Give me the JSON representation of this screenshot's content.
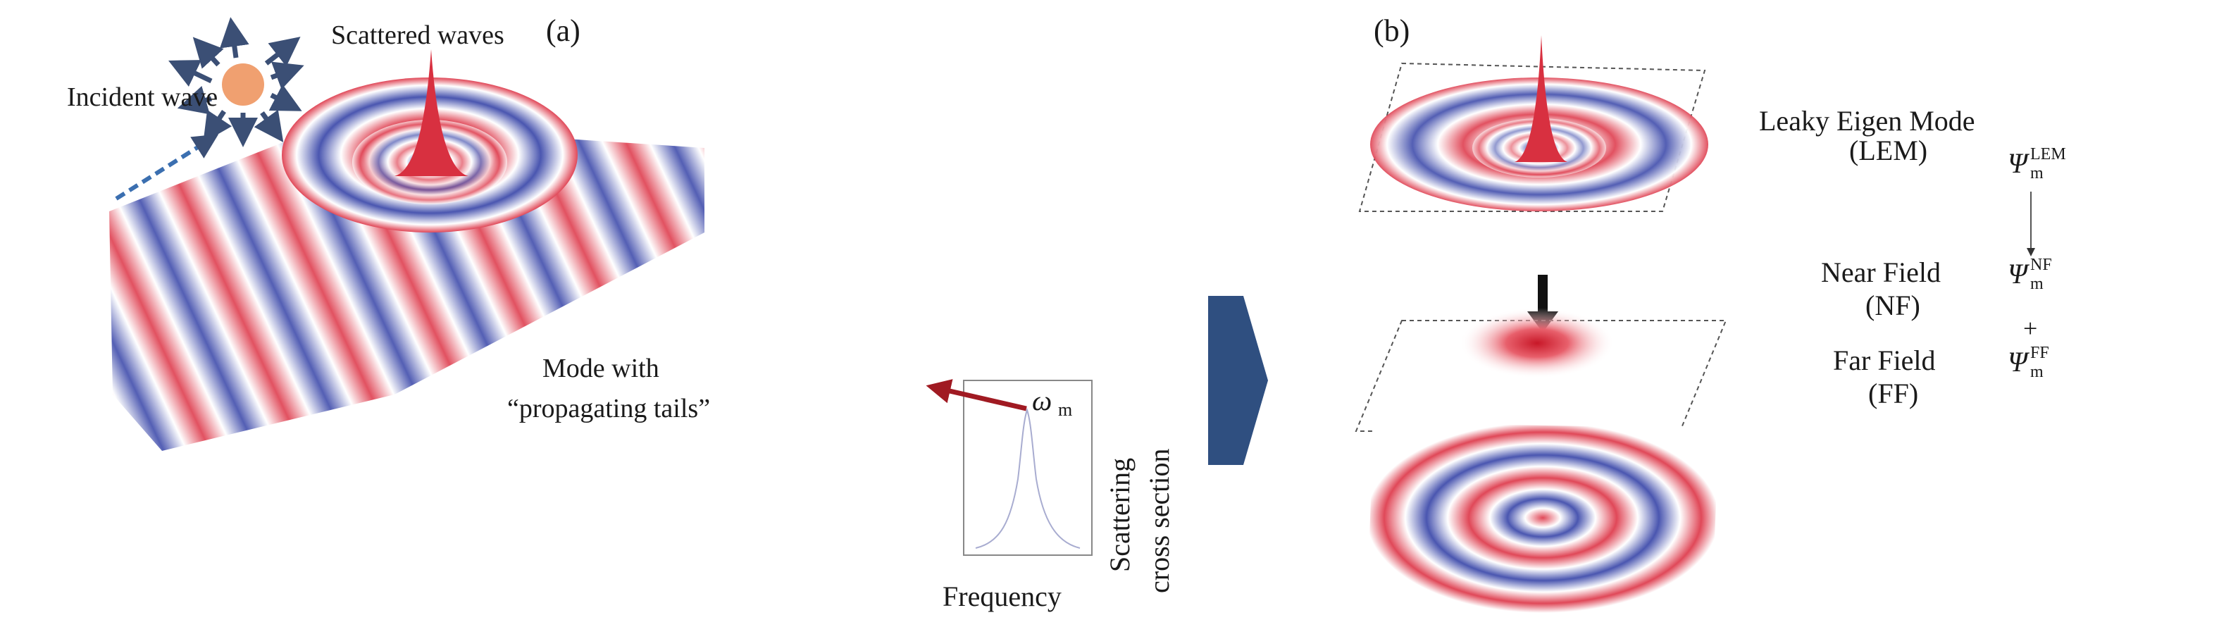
{
  "panel_a": {
    "label": "(a)",
    "scattered_waves": "Scattered waves",
    "incident_wave": "Incident wave",
    "mode_line1": "Mode with",
    "mode_line2": "“propagating tails”",
    "omega_symbol": "ω",
    "omega_sub": "m",
    "frequency": "Frequency",
    "ylabel_line1": "Scattering",
    "ylabel_line2": "cross section"
  },
  "panel_b": {
    "label": "(b)",
    "lem_line1": "Leaky Eigen Mode",
    "lem_line2": "(LEM)",
    "nf_line1": "Near Field",
    "nf_line2": "(NF)",
    "ff_line1": "Far Field",
    "ff_line2": "(FF)",
    "psi": "Ψ",
    "psi_sub": "m",
    "psi_lem_sup": "LEM",
    "psi_nf_sup": "NF",
    "psi_ff_sup": "FF",
    "plus": "+"
  },
  "colors": {
    "red": "#e0485a",
    "blue": "#4a56b0",
    "orange": "#f0a070",
    "arrow_blue": "#2f4f80",
    "dark_red": "#a01a22"
  }
}
